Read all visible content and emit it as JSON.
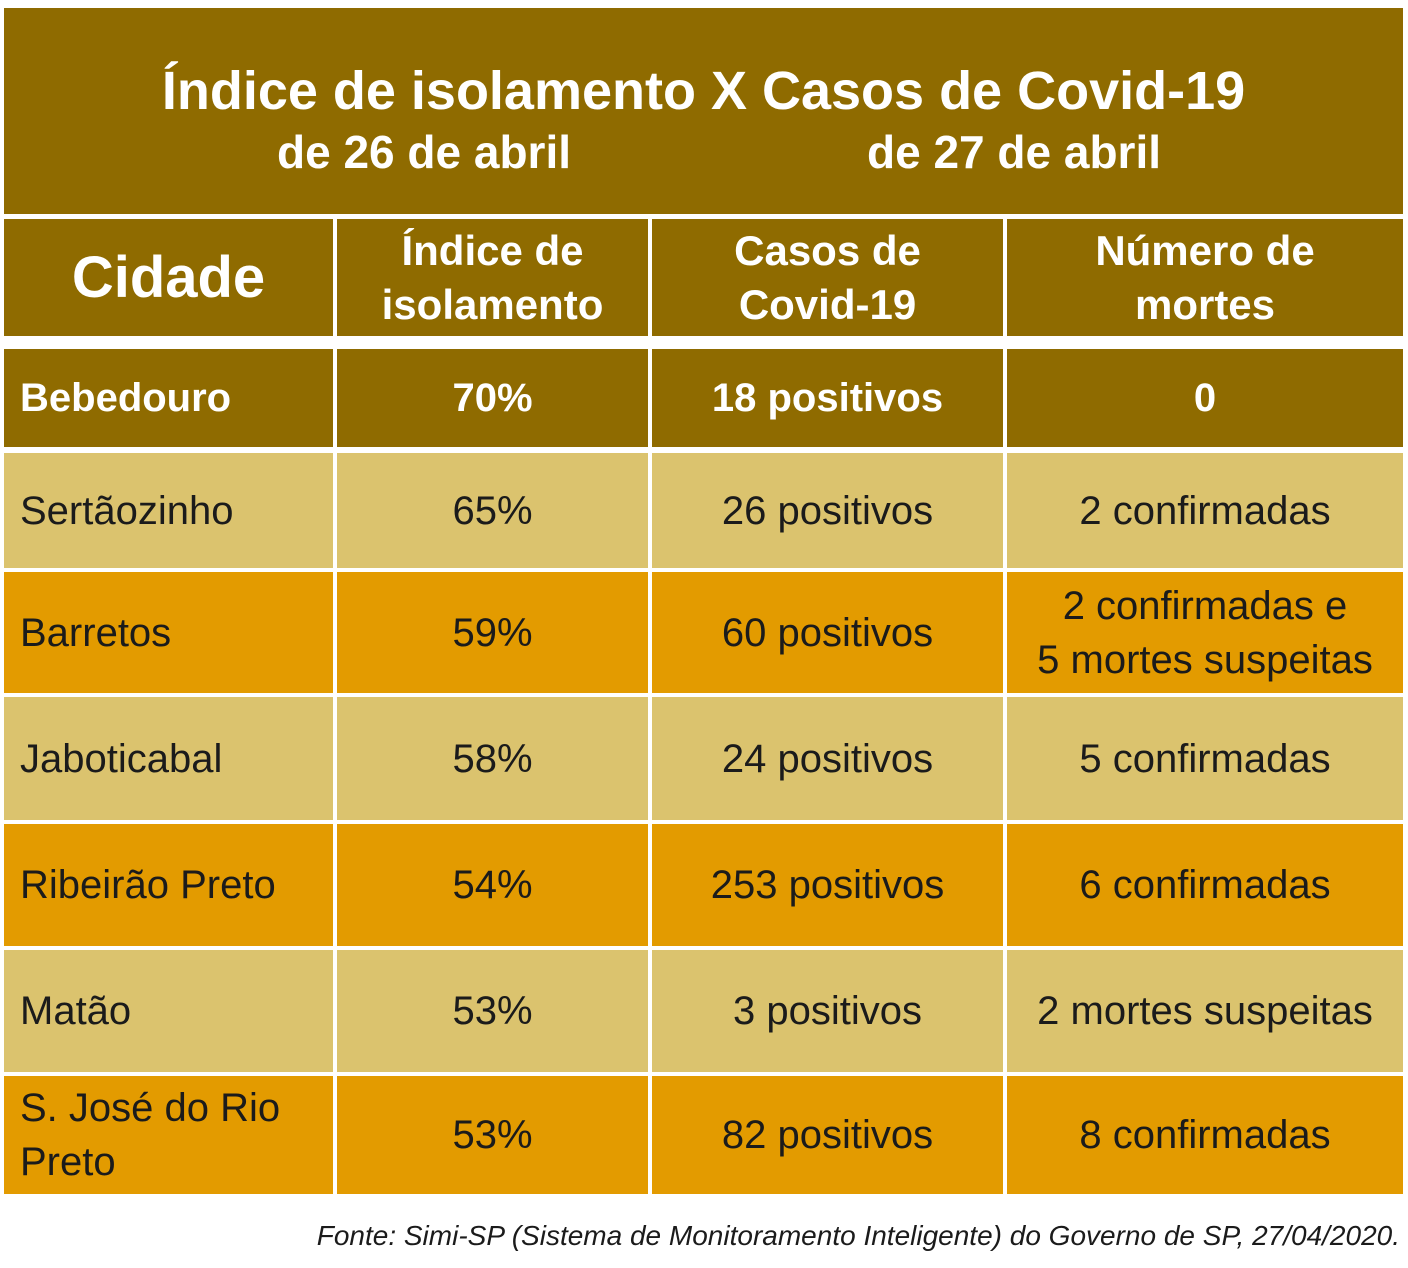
{
  "chart_data": {
    "type": "table",
    "title": "Índice de isolamento X Casos de Covid-19",
    "subtitle_left": "de 26 de abril",
    "subtitle_right": "de 27 de abril",
    "columns": [
      "Cidade",
      "Índice de isolamento",
      "Casos de Covid-19",
      "Número de mortes"
    ],
    "rows": [
      [
        "Bebedouro",
        "70%",
        "18 positivos",
        "0"
      ],
      [
        "Sertãozinho",
        "65%",
        "26 positivos",
        "2 confirmadas"
      ],
      [
        "Barretos",
        "59%",
        "60 positivos",
        "2 confirmadas e 5 mortes suspeitas"
      ],
      [
        "Jaboticabal",
        "58%",
        "24 positivos",
        "5 confirmadas"
      ],
      [
        "Ribeirão Preto",
        "54%",
        "253 positivos",
        "6 confirmadas"
      ],
      [
        "Matão",
        "53%",
        "3 positivos",
        "2 mortes suspeitas"
      ],
      [
        "S. José do Rio Preto",
        "53%",
        "82 positivos",
        "8 confirmadas"
      ]
    ],
    "source": "Fonte: Simi-SP (Sistema de Monitoramento Inteligente) do Governo de SP, 27/04/2020.",
    "colors": {
      "header": "#8f6b00",
      "row_light": "#dbc36e",
      "row_orange": "#e39b00",
      "header_text": "#ffffff",
      "body_text": "#1b1b1b"
    }
  }
}
